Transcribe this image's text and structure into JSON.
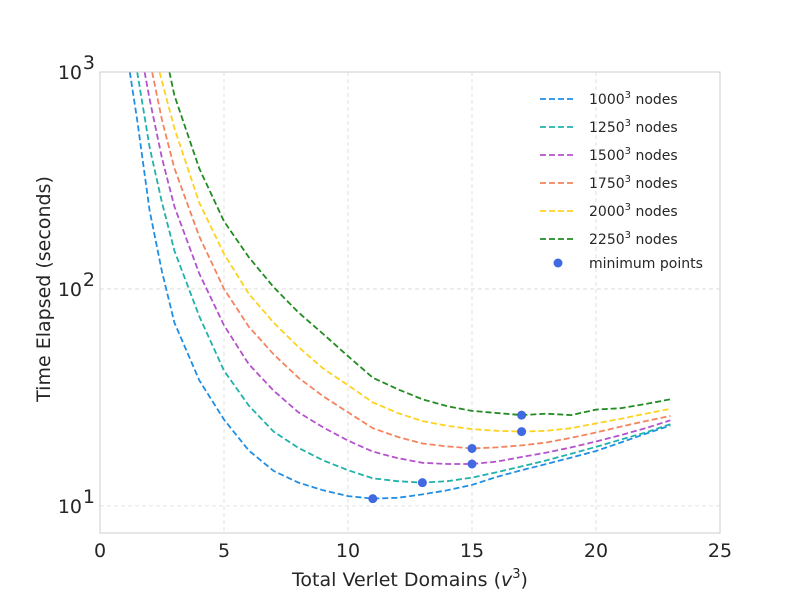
{
  "chart_data": {
    "type": "line",
    "title": "",
    "xlabel": "Total Verlet Domains (",
    "xlabel_var": "v",
    "xlabel_sup": "3",
    "xlabel_end": ")",
    "ylabel": "Time Elapsed (seconds)",
    "xlim": [
      0,
      25
    ],
    "ylim": [
      7.5,
      1000
    ],
    "yscale": "log",
    "grid": true,
    "legend_position": "top-right",
    "x_ticks": [
      "0",
      "5",
      "10",
      "15",
      "20",
      "25"
    ],
    "y_ticks": [
      {
        "value": 10,
        "base": "10",
        "exp": "1"
      },
      {
        "value": 100,
        "base": "10",
        "exp": "2"
      },
      {
        "value": 1000,
        "base": "10",
        "exp": "3"
      }
    ],
    "series": [
      {
        "name": "1000",
        "sup": "3",
        "suffix": " nodes",
        "color": "#1f8fe6",
        "x": [
          1.2,
          1.5,
          2,
          2.5,
          3,
          4,
          5,
          6,
          7,
          8,
          9,
          10,
          11,
          12,
          13,
          14,
          15,
          16,
          17,
          18,
          19,
          20,
          21,
          22,
          23
        ],
        "y": [
          1000,
          600,
          230,
          120,
          70,
          38,
          25,
          18,
          14.5,
          12.8,
          11.8,
          11.1,
          10.8,
          10.9,
          11.3,
          11.8,
          12.5,
          13.6,
          14.6,
          15.6,
          16.7,
          17.9,
          19.6,
          21.5,
          23.5
        ]
      },
      {
        "name": "1250",
        "sup": "3",
        "suffix": " nodes",
        "color": "#20b2aa",
        "x": [
          1.5,
          2,
          2.5,
          3,
          4,
          5,
          6,
          7,
          8,
          9,
          10,
          11,
          12,
          13,
          14,
          15,
          16,
          17,
          18,
          19,
          20,
          21,
          22,
          23
        ],
        "y": [
          1000,
          450,
          250,
          150,
          75,
          42,
          29,
          22,
          18.5,
          16.2,
          14.6,
          13.4,
          13.0,
          12.8,
          13.0,
          13.5,
          14.3,
          15.2,
          16.2,
          17.4,
          18.7,
          20.2,
          21.8,
          23.8
        ]
      },
      {
        "name": "1500",
        "sup": "3",
        "suffix": " nodes",
        "color": "#b452cd",
        "x": [
          1.8,
          2,
          2.5,
          3,
          4,
          5,
          6,
          7,
          8,
          9,
          10,
          11,
          12,
          13,
          14,
          15,
          16,
          17,
          18,
          19,
          20,
          21,
          22,
          23
        ],
        "y": [
          1000,
          750,
          400,
          240,
          118,
          68,
          45,
          34,
          27,
          23,
          20,
          17.8,
          16.6,
          15.8,
          15.6,
          15.6,
          16.0,
          16.8,
          17.6,
          18.6,
          19.8,
          21.2,
          22.8,
          24.8
        ]
      },
      {
        "name": "1750",
        "sup": "3",
        "suffix": " nodes",
        "color": "#f4845f",
        "x": [
          2.1,
          2.5,
          3,
          4,
          5,
          6,
          7,
          8,
          9,
          10,
          11,
          12,
          13,
          14,
          15,
          16,
          17,
          18,
          19,
          20,
          21,
          22,
          23
        ],
        "y": [
          1000,
          600,
          360,
          175,
          100,
          67,
          50,
          39,
          32,
          27,
          22.8,
          20.8,
          19.4,
          18.8,
          18.4,
          18.6,
          19.0,
          19.6,
          20.6,
          21.8,
          23.2,
          24.6,
          26.0
        ]
      },
      {
        "name": "2000",
        "sup": "3",
        "suffix": " nodes",
        "color": "#ffd21f",
        "x": [
          2.4,
          3,
          4,
          5,
          6,
          7,
          8,
          9,
          10,
          11,
          12,
          13,
          14,
          15,
          16,
          17,
          18,
          19,
          20,
          21,
          22,
          23
        ],
        "y": [
          1000,
          550,
          250,
          145,
          95,
          70,
          54,
          43,
          36,
          30,
          26.8,
          24.6,
          23.4,
          22.6,
          22.2,
          22.0,
          22.2,
          22.8,
          24.0,
          25.2,
          26.6,
          28.0
        ]
      },
      {
        "name": "2250",
        "sup": "3",
        "suffix": " nodes",
        "color": "#228b22",
        "x": [
          2.8,
          3,
          4,
          5,
          6,
          7,
          8,
          9,
          10,
          11,
          12,
          13,
          14,
          15,
          16,
          17,
          18,
          19,
          20,
          21,
          22,
          23
        ],
        "y": [
          1000,
          780,
          360,
          205,
          140,
          102,
          78,
          62,
          49,
          39,
          34.5,
          31.0,
          28.8,
          27.4,
          26.8,
          26.2,
          26.6,
          26.2,
          27.8,
          28.2,
          29.5,
          31.0
        ]
      }
    ],
    "minimum_points": {
      "name": "minimum points",
      "color": "#4169e1",
      "x": [
        11,
        13,
        15,
        15,
        17,
        17
      ],
      "y": [
        10.8,
        12.8,
        15.6,
        18.4,
        22.0,
        26.2
      ]
    }
  }
}
